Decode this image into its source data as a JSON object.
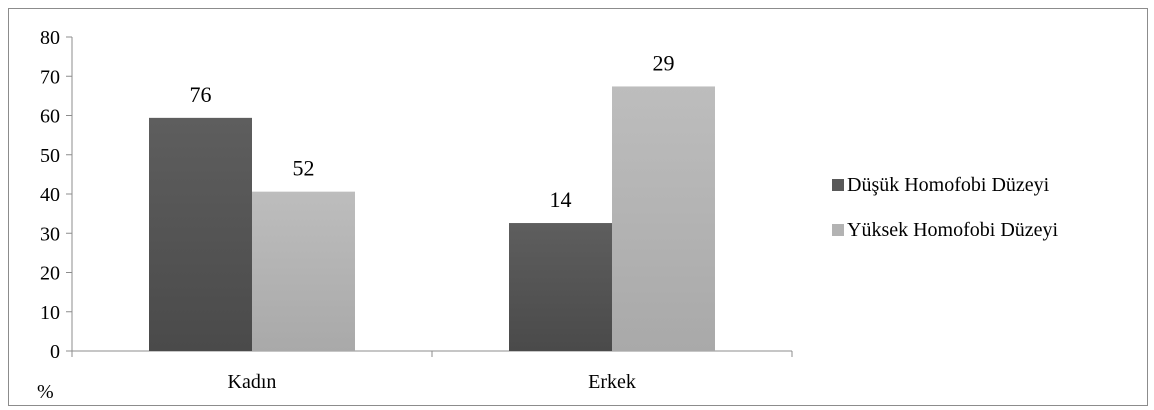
{
  "chart_data": {
    "type": "bar",
    "categories": [
      "Kadın",
      "Erkek"
    ],
    "series": [
      {
        "name": "Düşük Homofobi Düzeyi",
        "values": [
          59.4,
          32.6
        ],
        "labels": [
          "76",
          "14"
        ],
        "color": "#595959"
      },
      {
        "name": "Yüksek Homofobi Düzeyi",
        "values": [
          40.6,
          67.4
        ],
        "labels": [
          "52",
          "29"
        ],
        "color": "#b3b3b3"
      }
    ],
    "ylim": [
      0,
      80
    ],
    "yticks": [
      0,
      10,
      20,
      30,
      40,
      50,
      60,
      70,
      80
    ],
    "ylabel": "%",
    "legend_position": "right",
    "grid": false
  }
}
